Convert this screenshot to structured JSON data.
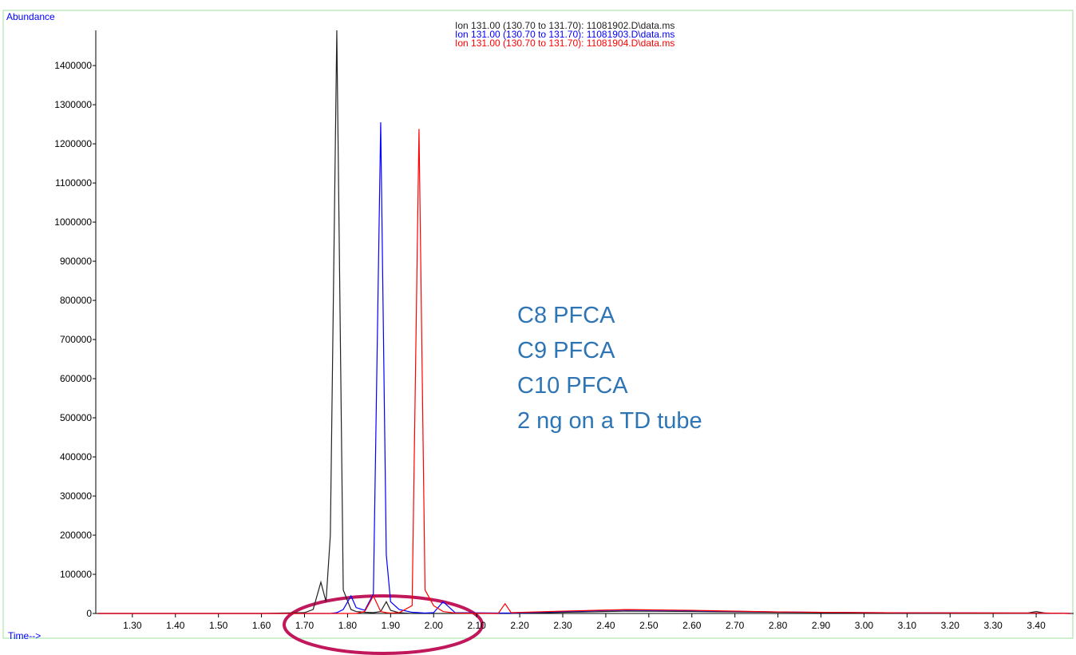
{
  "chart_data": {
    "type": "line",
    "y_label": "Abundance",
    "x_label": "Time-->",
    "annotations": [
      "C8 PFCA",
      "C9 PFCA",
      "C10 PFCA",
      "2 ng on a TD tube"
    ],
    "annotation_color": "#2e75b6",
    "x": [
      1.22,
      1.6,
      1.7,
      1.72,
      1.738,
      1.75,
      1.76,
      1.775,
      1.79,
      1.808,
      1.82,
      1.84,
      1.86,
      1.877,
      1.89,
      1.9,
      1.92,
      1.95,
      1.966,
      1.98,
      2.0,
      2.022,
      2.05,
      2.15,
      2.166,
      2.18,
      2.3,
      2.45,
      2.6,
      2.8,
      3.0,
      3.38,
      3.4,
      3.42,
      3.48
    ],
    "series": [
      {
        "name": "Ion 131.00 (130.70 to 131.70): 11081902.D\\data.ms",
        "color": "#222222",
        "values": [
          0,
          0,
          2000,
          10000,
          80000,
          30000,
          200000,
          1490000,
          60000,
          10000,
          5000,
          3000,
          2000,
          5000,
          30000,
          8000,
          2000,
          0,
          0,
          0,
          0,
          0,
          0,
          0,
          0,
          0,
          3000,
          6000,
          5000,
          3000,
          2000,
          1000,
          5000,
          1000,
          0
        ]
      },
      {
        "name": "Ion 131.00 (130.70 to 131.70): 11081903.D\\data.ms",
        "color": "#0000ff",
        "values": [
          0,
          0,
          0,
          0,
          0,
          0,
          0,
          2000,
          10000,
          45000,
          15000,
          8000,
          50000,
          1255000,
          150000,
          30000,
          10000,
          3000,
          2000,
          1000,
          2000,
          30000,
          2000,
          1000,
          1000,
          1000,
          5000,
          9000,
          7000,
          4000,
          2000,
          1000,
          1000,
          1000,
          0
        ]
      },
      {
        "name": "Ion 131.00 (130.70 to 131.70): 11081904.D\\data.ms",
        "color": "#ff0000",
        "values": [
          0,
          0,
          0,
          0,
          0,
          0,
          0,
          0,
          0,
          0,
          0,
          5000,
          45000,
          5000,
          2000,
          1000,
          2000,
          20000,
          1238000,
          60000,
          20000,
          5000,
          1000,
          0,
          25000,
          2000,
          6000,
          10000,
          8000,
          4000,
          2000,
          1000,
          1000,
          1000,
          0
        ]
      }
    ],
    "xlim": [
      1.215,
      3.487
    ],
    "ylim": [
      0,
      1490000
    ],
    "xticks": [
      {
        "value": 1.3,
        "label": "1.30"
      },
      {
        "value": 1.4,
        "label": "1.40"
      },
      {
        "value": 1.5,
        "label": "1.50"
      },
      {
        "value": 1.6,
        "label": "1.60"
      },
      {
        "value": 1.7,
        "label": "1.70"
      },
      {
        "value": 1.8,
        "label": "1.80"
      },
      {
        "value": 1.9,
        "label": "1.90"
      },
      {
        "value": 2.0,
        "label": "2.00"
      },
      {
        "value": 2.1,
        "label": "2.10"
      },
      {
        "value": 2.2,
        "label": "2.20"
      },
      {
        "value": 2.3,
        "label": "2.30"
      },
      {
        "value": 2.4,
        "label": "2.40"
      },
      {
        "value": 2.5,
        "label": "2.50"
      },
      {
        "value": 2.6,
        "label": "2.60"
      },
      {
        "value": 2.7,
        "label": "2.70"
      },
      {
        "value": 2.8,
        "label": "2.80"
      },
      {
        "value": 2.9,
        "label": "2.90"
      },
      {
        "value": 3.0,
        "label": "3.00"
      },
      {
        "value": 3.1,
        "label": "3.10"
      },
      {
        "value": 3.2,
        "label": "3.20"
      },
      {
        "value": 3.3,
        "label": "3.30"
      },
      {
        "value": 3.4,
        "label": "3.40"
      }
    ],
    "yticks": [
      0,
      100000,
      200000,
      300000,
      400000,
      500000,
      600000,
      700000,
      800000,
      900000,
      1000000,
      1100000,
      1200000,
      1300000,
      1400000
    ],
    "grid": false
  }
}
